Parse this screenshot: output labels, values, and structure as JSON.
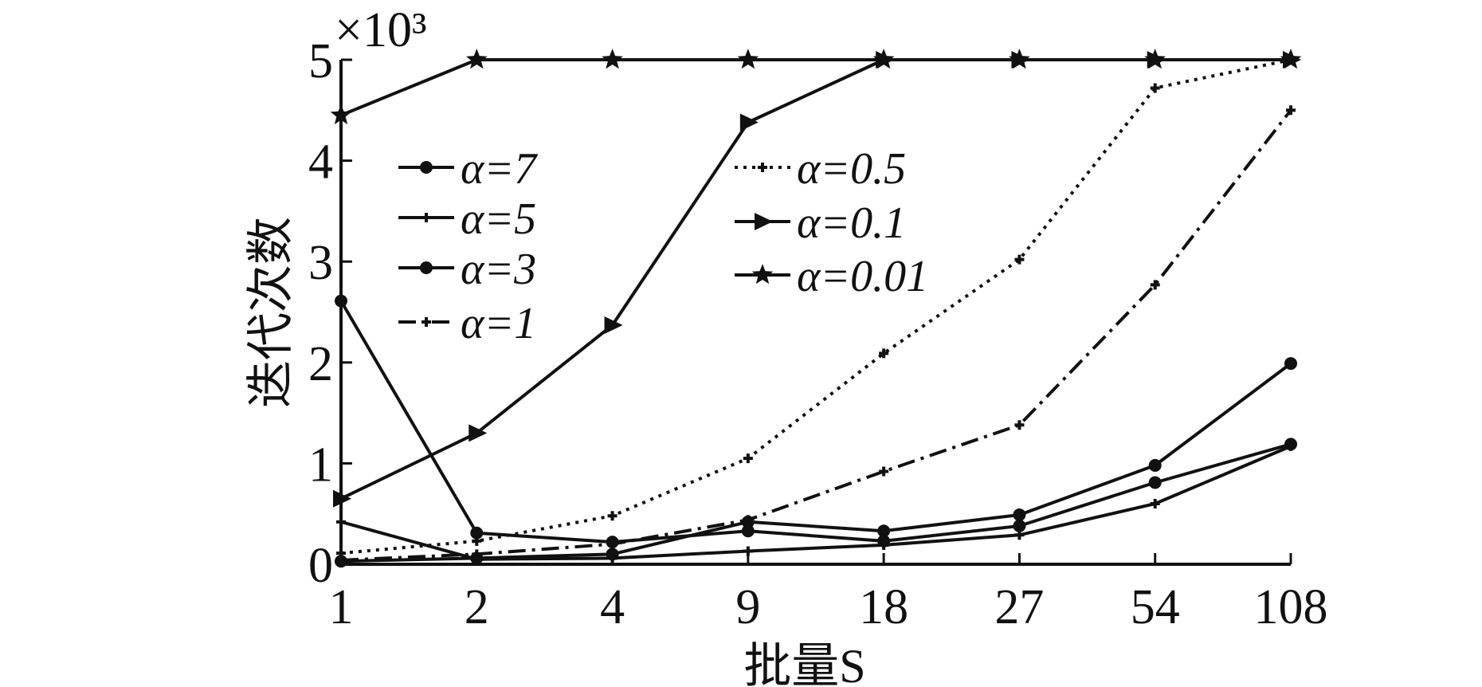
{
  "chart_data": {
    "type": "line",
    "xlabel": "批量S",
    "ylabel": "迭代次数",
    "y_multiplier": "×10³",
    "x_tick_labels": [
      "1",
      "2",
      "4",
      "9",
      "18",
      "27",
      "54",
      "108"
    ],
    "y_tick_labels": [
      "0",
      "1",
      "2",
      "3",
      "4",
      "5"
    ],
    "ylim": [
      0,
      5000
    ],
    "grid": false,
    "legend": "two columns inside plot, upper left and upper center",
    "series": [
      {
        "name": "α=7",
        "marker": "dot",
        "dash": "solid",
        "values": [
          30,
          60,
          100,
          420,
          330,
          490,
          980,
          1990
        ]
      },
      {
        "name": "α=5",
        "marker": "small-plus",
        "dash": "solid",
        "values": [
          420,
          50,
          60,
          130,
          190,
          290,
          600,
          1170
        ]
      },
      {
        "name": "α=3",
        "marker": "dot",
        "dash": "solid",
        "values": [
          2610,
          310,
          220,
          330,
          230,
          380,
          810,
          1190
        ]
      },
      {
        "name": "α=1",
        "marker": "small-plus",
        "dash": "dashdot",
        "values": [
          40,
          100,
          200,
          440,
          920,
          1380,
          2770,
          4500
        ]
      },
      {
        "name": "α=0.5",
        "marker": "small-plus",
        "dash": "dotted",
        "values": [
          110,
          230,
          480,
          1050,
          2090,
          3020,
          4720,
          5000
        ]
      },
      {
        "name": "α=0.1",
        "marker": "triangle-right",
        "dash": "solid",
        "values": [
          650,
          1300,
          2370,
          4380,
          5000,
          5000,
          5000,
          5000
        ]
      },
      {
        "name": "α=0.01",
        "marker": "star",
        "dash": "solid",
        "values": [
          4450,
          5000,
          5000,
          5000,
          5000,
          5000,
          5000,
          5000
        ]
      }
    ]
  }
}
